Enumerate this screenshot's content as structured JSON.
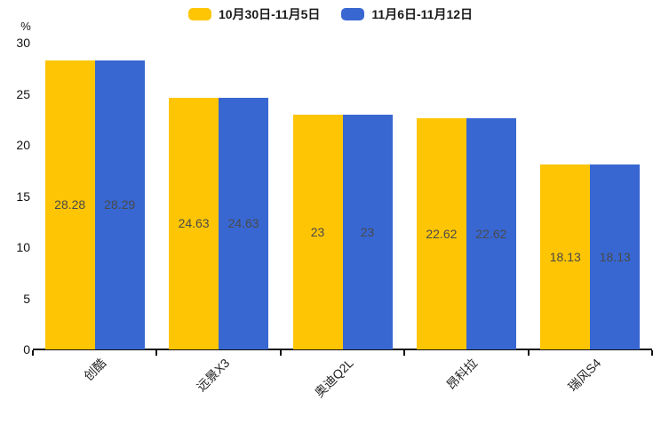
{
  "legend": [
    {
      "label": "10月30日-11月5日",
      "color": "#FDC504"
    },
    {
      "label": "11月6日-11月12日",
      "color": "#3867D2"
    }
  ],
  "chart_data": {
    "type": "bar",
    "title": "",
    "unit_label": "%",
    "categories": [
      "创酷",
      "远景X3",
      "奥迪Q2L",
      "昂科拉",
      "瑞风S4"
    ],
    "series": [
      {
        "name": "10月30日-11月5日",
        "color": "#FDC504",
        "values": [
          28.28,
          24.63,
          23,
          22.62,
          18.13
        ],
        "labels": [
          "28.28",
          "24.63",
          "23",
          "22.62",
          "18.13"
        ]
      },
      {
        "name": "11月6日-11月12日",
        "color": "#3867D2",
        "values": [
          28.29,
          24.63,
          23,
          22.62,
          18.13
        ],
        "labels": [
          "28.29",
          "24.63",
          "23",
          "22.62",
          "18.13"
        ]
      }
    ],
    "y_ticks": [
      0,
      5,
      10,
      15,
      20,
      25,
      30
    ],
    "ylim": [
      0,
      30
    ],
    "grid": false,
    "legend_position": "top",
    "value_label_position": "inside-center",
    "category_label_rotation_deg": 45,
    "axis_color": "#111111",
    "value_label_color": "#4a4a4a"
  }
}
